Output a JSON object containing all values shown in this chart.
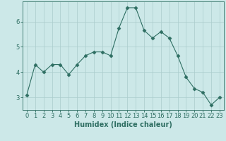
{
  "x": [
    0,
    1,
    2,
    3,
    4,
    5,
    6,
    7,
    8,
    9,
    10,
    11,
    12,
    13,
    14,
    15,
    16,
    17,
    18,
    19,
    20,
    21,
    22,
    23
  ],
  "y": [
    3.1,
    4.3,
    4.0,
    4.3,
    4.3,
    3.9,
    4.3,
    4.65,
    4.8,
    4.8,
    4.65,
    5.75,
    6.55,
    6.55,
    5.65,
    5.35,
    5.6,
    5.35,
    4.65,
    3.8,
    3.35,
    3.2,
    2.7,
    3.0
  ],
  "line_color": "#2e6e62",
  "marker": "D",
  "marker_size": 2.5,
  "bg_color": "#cce8e8",
  "grid_color": "#aacccc",
  "xlabel": "Humidex (Indice chaleur)",
  "xlim": [
    -0.5,
    23.5
  ],
  "ylim": [
    2.5,
    6.8
  ],
  "yticks": [
    3,
    4,
    5,
    6
  ],
  "xticks": [
    0,
    1,
    2,
    3,
    4,
    5,
    6,
    7,
    8,
    9,
    10,
    11,
    12,
    13,
    14,
    15,
    16,
    17,
    18,
    19,
    20,
    21,
    22,
    23
  ],
  "xlabel_fontsize": 7,
  "tick_fontsize": 6,
  "tick_color": "#2e6e62",
  "axis_color": "#2e6e62"
}
